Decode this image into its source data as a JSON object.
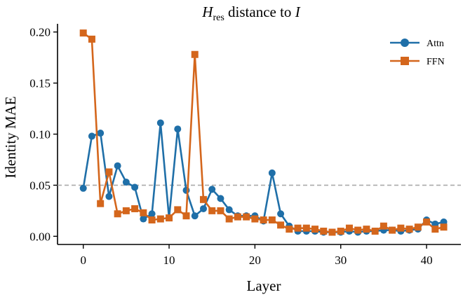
{
  "chart_data": {
    "type": "line",
    "title_prefix": "H",
    "title_sub": "res",
    "title_mid": " distance to ",
    "title_suffix": "I",
    "xlabel": "Layer",
    "ylabel": "Identity MAE",
    "xlim": [
      -3,
      44
    ],
    "ylim": [
      -0.008,
      0.208
    ],
    "xticks": [
      0,
      10,
      20,
      30,
      40
    ],
    "yticks": [
      0.0,
      0.05,
      0.1,
      0.15,
      0.2
    ],
    "ytick_labels": [
      "0.00",
      "0.05",
      "0.10",
      "0.15",
      "0.20"
    ],
    "reference_line": {
      "y": 0.05,
      "style": "dashed",
      "color": "#aaaaaa"
    },
    "legend_position": "top-right",
    "series": [
      {
        "name": "Attn",
        "marker": "circle",
        "color": "#1f6fa8",
        "x": [
          0,
          1,
          2,
          3,
          4,
          5,
          6,
          7,
          8,
          9,
          10,
          11,
          12,
          13,
          14,
          15,
          16,
          17,
          18,
          19,
          20,
          21,
          22,
          23,
          24,
          25,
          26,
          27,
          28,
          29,
          30,
          31,
          32,
          33,
          34,
          35,
          36,
          37,
          38,
          39,
          40,
          41,
          42
        ],
        "y": [
          0.047,
          0.098,
          0.101,
          0.039,
          0.069,
          0.053,
          0.048,
          0.017,
          0.022,
          0.111,
          0.018,
          0.105,
          0.045,
          0.02,
          0.027,
          0.046,
          0.037,
          0.026,
          0.02,
          0.02,
          0.02,
          0.015,
          0.062,
          0.022,
          0.01,
          0.005,
          0.005,
          0.005,
          0.004,
          0.004,
          0.004,
          0.005,
          0.004,
          0.005,
          0.005,
          0.006,
          0.006,
          0.005,
          0.006,
          0.007,
          0.016,
          0.012,
          0.014
        ]
      },
      {
        "name": "FFN",
        "marker": "square",
        "color": "#d4661c",
        "x": [
          0,
          1,
          2,
          3,
          4,
          5,
          6,
          7,
          8,
          9,
          10,
          11,
          12,
          13,
          14,
          15,
          16,
          17,
          18,
          19,
          20,
          21,
          22,
          23,
          24,
          25,
          26,
          27,
          28,
          29,
          30,
          31,
          32,
          33,
          34,
          35,
          36,
          37,
          38,
          39,
          40,
          41,
          42
        ],
        "y": [
          0.199,
          0.193,
          0.032,
          0.063,
          0.022,
          0.025,
          0.027,
          0.023,
          0.016,
          0.017,
          0.018,
          0.026,
          0.02,
          0.178,
          0.036,
          0.025,
          0.025,
          0.017,
          0.019,
          0.019,
          0.017,
          0.016,
          0.016,
          0.011,
          0.007,
          0.008,
          0.008,
          0.007,
          0.005,
          0.004,
          0.005,
          0.008,
          0.006,
          0.007,
          0.005,
          0.01,
          0.006,
          0.008,
          0.007,
          0.009,
          0.014,
          0.007,
          0.009
        ]
      }
    ]
  }
}
